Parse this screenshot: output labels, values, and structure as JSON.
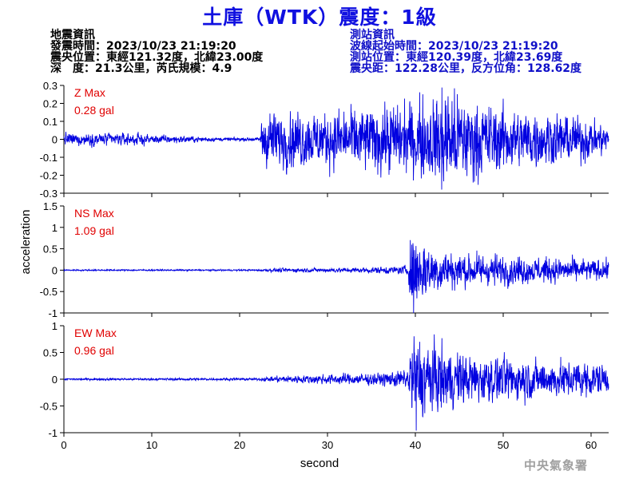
{
  "title": "土庫（WTK）震度：1級",
  "event_info": {
    "heading": "地震資訊",
    "origin_time": "發震時間：2023/10/23 21:19:20",
    "epicenter": "震央位置：東經121.32度，北緯23.00度",
    "depth_magnitude": "深　度：21.3公里，芮氏規模：4.9"
  },
  "station_info": {
    "heading": "測站資訊",
    "onset_time": "波線起始時間：2023/10/23 21:19:20",
    "station_location": "測站位置：東經120.39度，北緯23.69度",
    "distance_azimuth": "震央距：122.28公里，反方位角：128.62度"
  },
  "agency": "中央氣象署",
  "chart_data": {
    "type": "line",
    "xlabel": "second",
    "ylabel": "acceleration",
    "xlim": [
      0,
      62
    ],
    "x_ticks": [
      0,
      10,
      20,
      30,
      40,
      50,
      60
    ],
    "line_color": "#0000e0",
    "label_color": "#e00000",
    "series": [
      {
        "name": "Z Max",
        "max_label": "0.28 gal",
        "ylim": [
          -0.3,
          0.3
        ],
        "y_ticks": [
          "0.3",
          "0.2",
          "0.1",
          "0",
          "-0.1",
          "-0.2",
          "-0.3"
        ],
        "y_tick_values": [
          0.3,
          0.2,
          0.1,
          0,
          -0.1,
          -0.2,
          -0.3
        ],
        "amplitude_envelope": [
          [
            0,
            0.03
          ],
          [
            9,
            0.03
          ],
          [
            10,
            0.02
          ],
          [
            12,
            0.02
          ],
          [
            18,
            0.008
          ],
          [
            22.3,
            0.008
          ],
          [
            22.6,
            0.13
          ],
          [
            26,
            0.14
          ],
          [
            30,
            0.13
          ],
          [
            36,
            0.16
          ],
          [
            42,
            0.2
          ],
          [
            43,
            0.26
          ],
          [
            46,
            0.2
          ],
          [
            50,
            0.15
          ],
          [
            55,
            0.13
          ],
          [
            60,
            0.1
          ],
          [
            62,
            0.06
          ]
        ],
        "peak": {
          "x": 43.0,
          "y": -0.28
        }
      },
      {
        "name": "NS Max",
        "max_label": "1.09 gal",
        "ylim": [
          -1,
          1.5
        ],
        "y_ticks": [
          "1.5",
          "1",
          "0.5",
          "0",
          "-0.5",
          "-1"
        ],
        "y_tick_values": [
          1.5,
          1,
          0.5,
          0,
          -0.5,
          -1
        ],
        "amplitude_envelope": [
          [
            0,
            0.015
          ],
          [
            22,
            0.015
          ],
          [
            24,
            0.04
          ],
          [
            33,
            0.05
          ],
          [
            38,
            0.08
          ],
          [
            39.2,
            0.12
          ],
          [
            39.5,
            0.95
          ],
          [
            40.5,
            0.7
          ],
          [
            42,
            0.45
          ],
          [
            45,
            0.35
          ],
          [
            50,
            0.3
          ],
          [
            55,
            0.25
          ],
          [
            60,
            0.22
          ],
          [
            62,
            0.2
          ]
        ],
        "peak": {
          "x": 39.8,
          "y": -1.09
        }
      },
      {
        "name": "EW Max",
        "max_label": "0.96 gal",
        "ylim": [
          -1,
          1
        ],
        "y_ticks": [
          "1",
          "0.5",
          "0",
          "-0.5",
          "-1"
        ],
        "y_tick_values": [
          1,
          0.5,
          0,
          -0.5,
          -1
        ],
        "amplitude_envelope": [
          [
            0,
            0.015
          ],
          [
            22,
            0.02
          ],
          [
            24,
            0.05
          ],
          [
            30,
            0.08
          ],
          [
            36,
            0.1
          ],
          [
            39.2,
            0.15
          ],
          [
            39.5,
            0.75
          ],
          [
            41,
            0.65
          ],
          [
            43,
            0.5
          ],
          [
            46,
            0.4
          ],
          [
            50,
            0.35
          ],
          [
            55,
            0.3
          ],
          [
            60,
            0.28
          ],
          [
            62,
            0.25
          ]
        ],
        "peak": {
          "x": 40.1,
          "y": -0.96
        }
      }
    ]
  }
}
